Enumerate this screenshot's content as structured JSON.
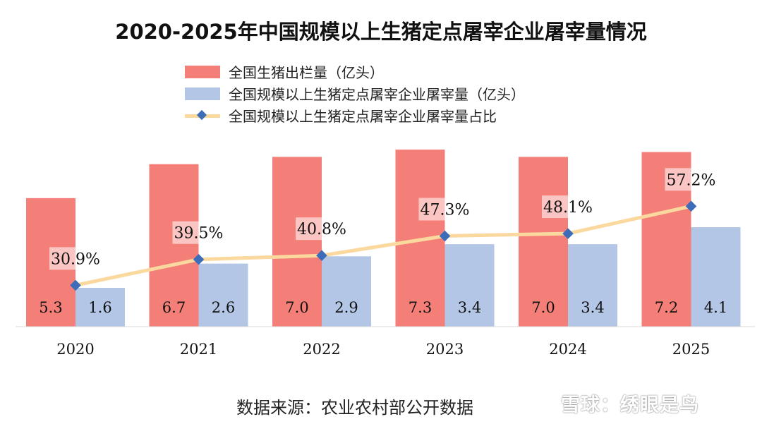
{
  "chart_data": {
    "type": "bar",
    "title": "2020-2025年中国规模以上生猪定点屠宰企业屠宰量情况",
    "categories": [
      "2020",
      "2021",
      "2022",
      "2023",
      "2024",
      "2025"
    ],
    "series": [
      {
        "name": "全国生猪出栏量（亿头）",
        "kind": "bar",
        "color": "#f47f78",
        "values": [
          5.3,
          6.7,
          7.0,
          7.3,
          7.0,
          7.2
        ],
        "labels": [
          "5.3",
          "6.7",
          "7.0",
          "7.3",
          "7.0",
          "7.2"
        ]
      },
      {
        "name": "全国规模以上生猪定点屠宰企业屠宰量（亿头）",
        "kind": "bar",
        "color": "#b3c6e5",
        "values": [
          1.6,
          2.6,
          2.9,
          3.4,
          3.4,
          4.1
        ],
        "labels": [
          "1.6",
          "2.6",
          "2.9",
          "3.4",
          "3.4",
          "4.1"
        ]
      },
      {
        "name": "全国规模以上生猪定点屠宰企业屠宰量占比",
        "kind": "line",
        "line_color": "#fad89e",
        "marker_color": "#3d6cb9",
        "values": [
          30.9,
          39.5,
          40.8,
          47.3,
          48.1,
          57.2
        ],
        "labels": [
          "30.9%",
          "39.5%",
          "40.8%",
          "47.3%",
          "48.1%",
          "57.2%"
        ]
      }
    ],
    "ylim": [
      0,
      8
    ],
    "secondary_ylim": [
      0,
      100
    ],
    "legend_position": "top",
    "grid": false
  },
  "source": "数据来源：农业农村部公开数据",
  "watermark": "雪球：绣眼是鸟"
}
